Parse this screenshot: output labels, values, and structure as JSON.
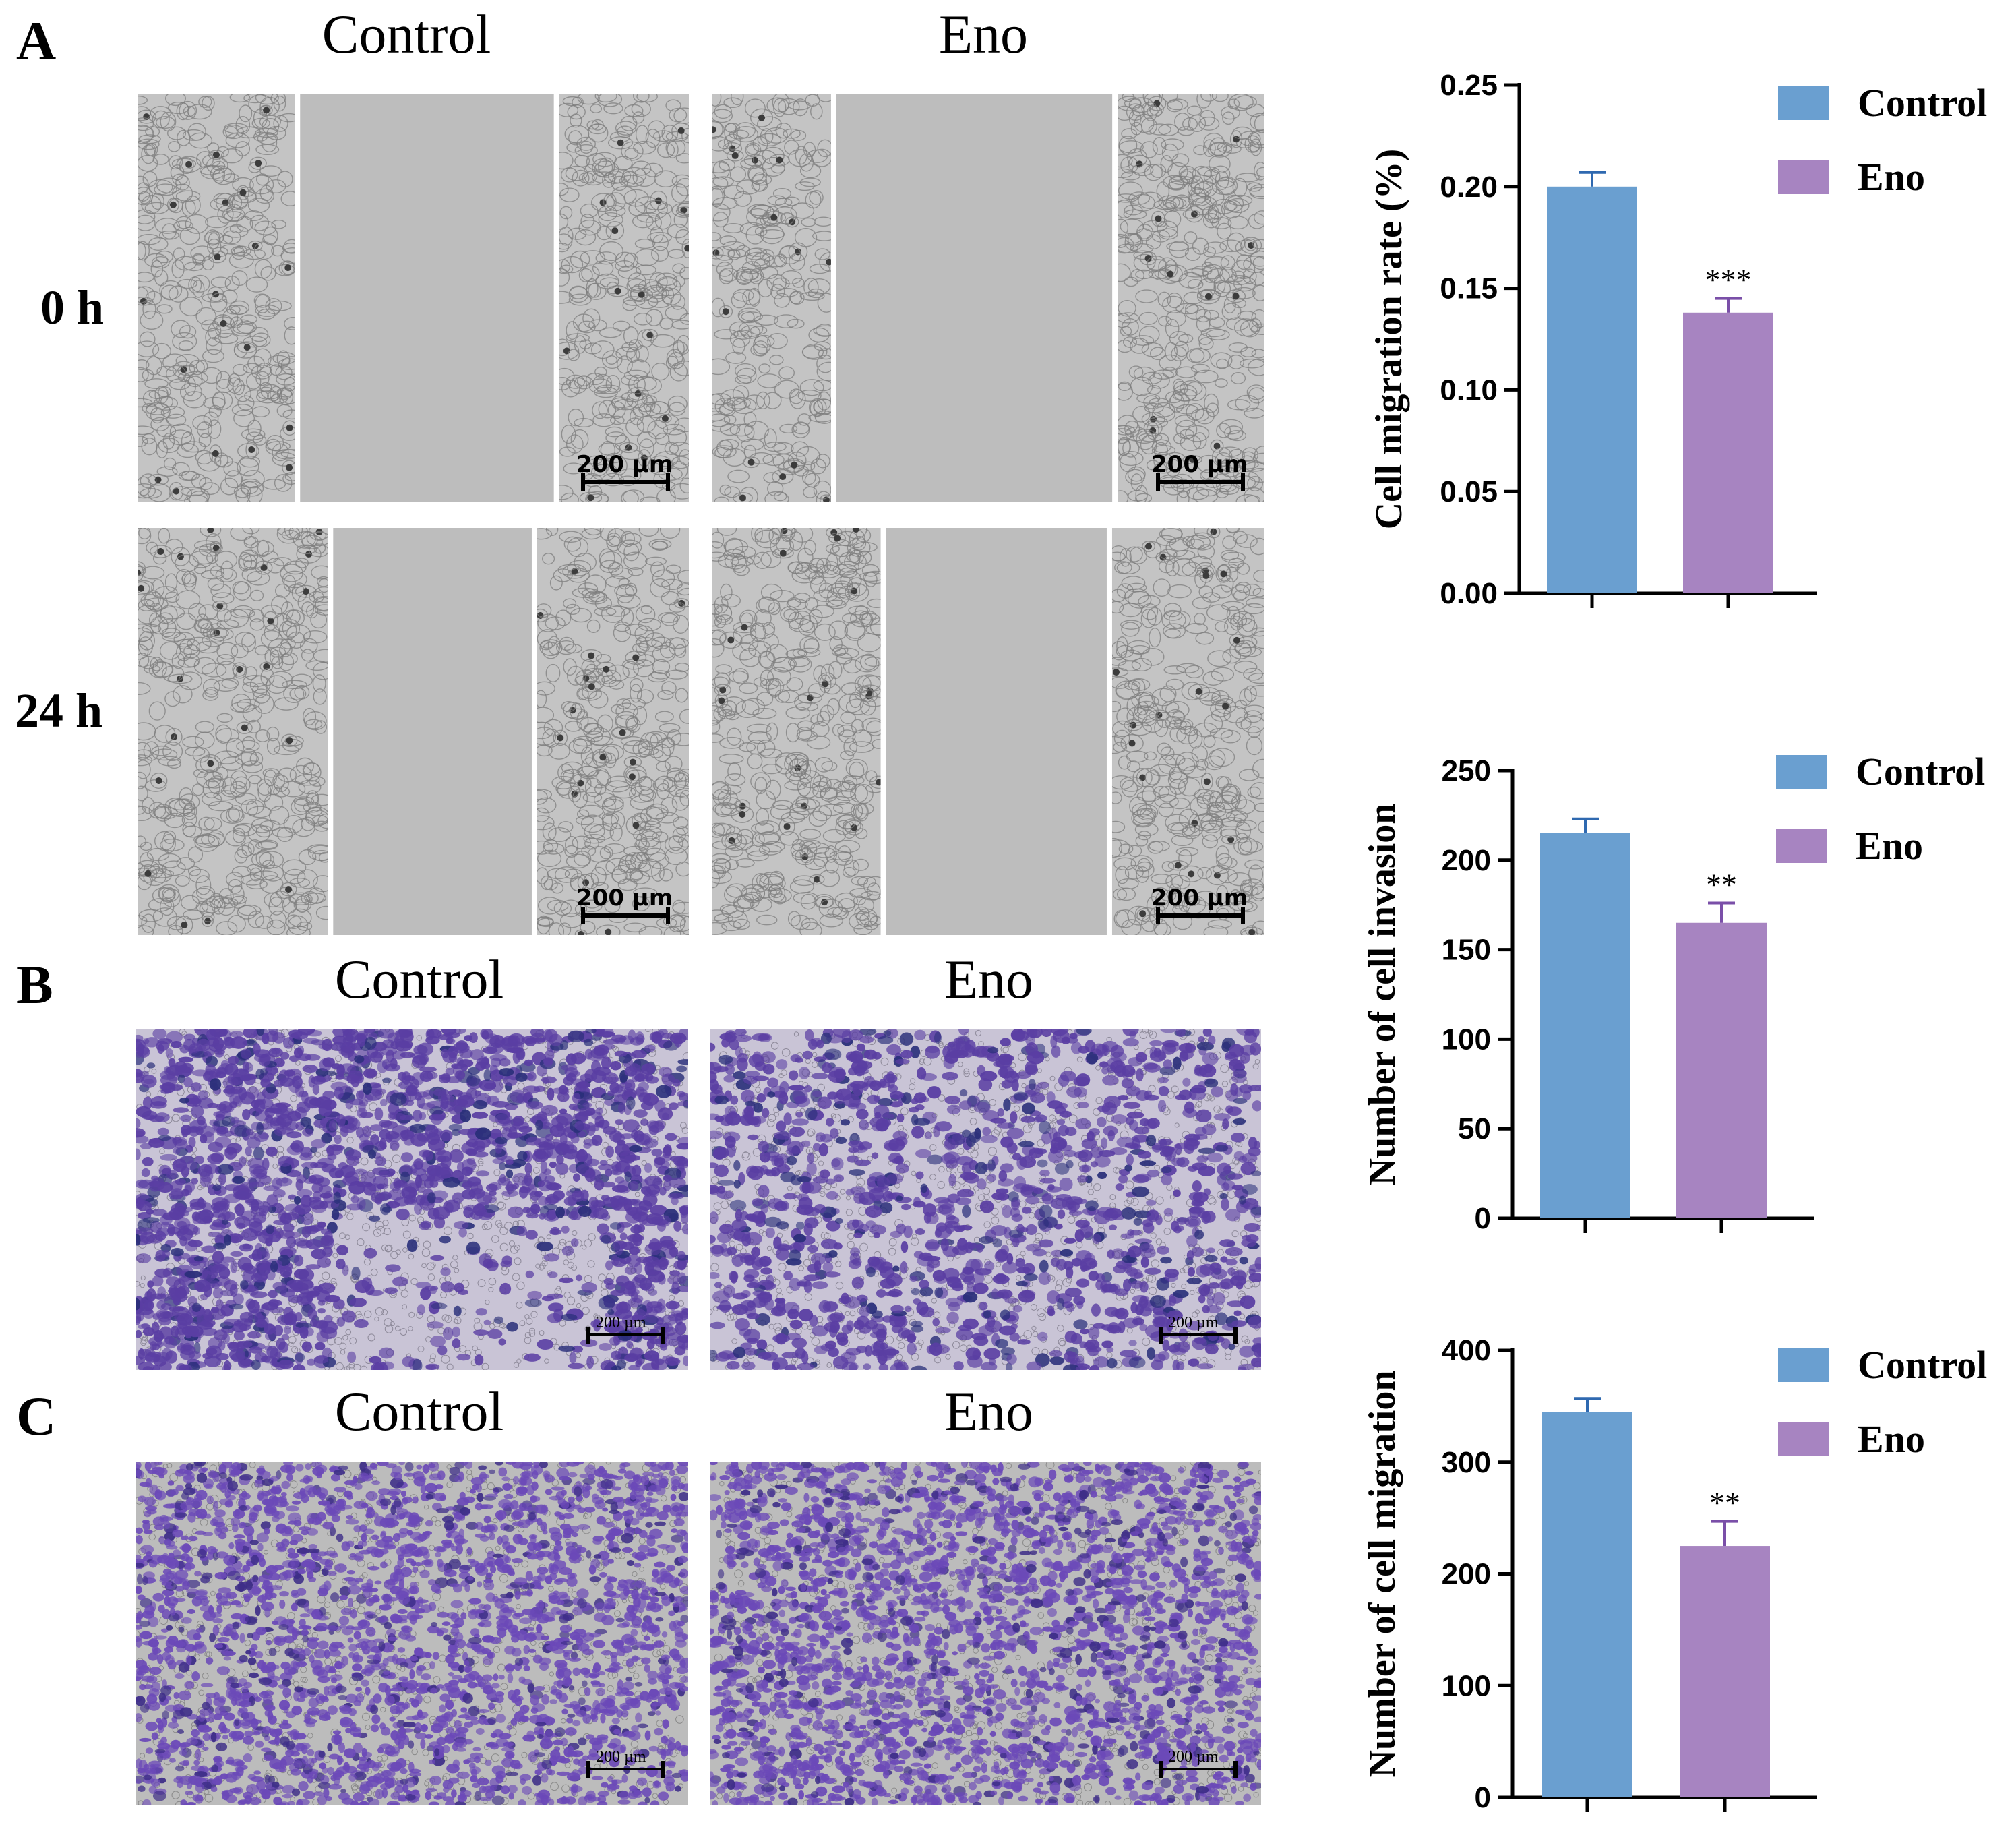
{
  "colors": {
    "control": "#6a9fd0",
    "control_err": "#2f69b0",
    "eno": "#a784c1",
    "eno_err": "#7a4fa8",
    "scratch_bg": "#c4c4c4",
    "scratch_gap": "#bdbdbd",
    "stain_bg": "#c9c4d6",
    "stain_cell": "#5a3ea3",
    "migr_bg": "#bcbcbc",
    "migr_cell": "#6b49b8"
  },
  "panel_a": {
    "letter": "A",
    "col_titles": [
      "Control",
      "Eno"
    ],
    "rows": [
      "0 h",
      "24 h"
    ],
    "scale_label": "200 µm"
  },
  "panel_b": {
    "letter": "B",
    "col_titles": [
      "Control",
      "Eno"
    ],
    "scale_label": "200 µm"
  },
  "panel_c": {
    "letter": "C",
    "col_titles": [
      "Control",
      "Eno"
    ],
    "scale_label": "200 µm"
  },
  "chart_data": [
    {
      "type": "bar",
      "categories": [
        "Control",
        "Eno"
      ],
      "values": [
        0.2,
        0.138
      ],
      "errors": [
        0.007,
        0.007
      ],
      "significance": [
        "",
        "***"
      ],
      "ylabel": "Cell migration rate (%)",
      "ylim": [
        0,
        0.25
      ],
      "yticks": [
        "0.00",
        "0.05",
        "0.10",
        "0.15",
        "0.20",
        "0.25"
      ],
      "legend": [
        "Control",
        "Eno"
      ],
      "legend_position": "top-right"
    },
    {
      "type": "bar",
      "categories": [
        "Control",
        "Eno"
      ],
      "values": [
        215,
        165
      ],
      "errors": [
        8,
        11
      ],
      "significance": [
        "",
        "**"
      ],
      "ylabel": "Number of cell invasion",
      "ylim": [
        0,
        250
      ],
      "yticks": [
        "0",
        "50",
        "100",
        "150",
        "200",
        "250"
      ],
      "legend": [
        "Control",
        "Eno"
      ],
      "legend_position": "top-right"
    },
    {
      "type": "bar",
      "categories": [
        "Control",
        "Eno"
      ],
      "values": [
        345,
        225
      ],
      "errors": [
        12,
        22
      ],
      "significance": [
        "",
        "**"
      ],
      "ylabel": "Number of cell migration",
      "ylim": [
        0,
        400
      ],
      "yticks": [
        "0",
        "100",
        "200",
        "300",
        "400"
      ],
      "legend": [
        "Control",
        "Eno"
      ],
      "legend_position": "top-right"
    }
  ]
}
